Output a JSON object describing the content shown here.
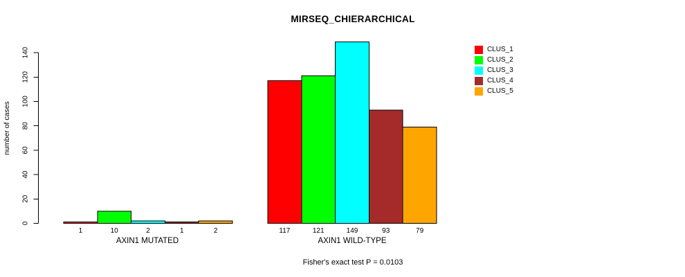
{
  "chart_data": {
    "type": "bar",
    "title": "MIRSEQ_CHIERARCHICAL",
    "ylabel": "number of cases",
    "xlabel": "",
    "ylim": [
      0,
      149
    ],
    "yticks": [
      0,
      20,
      40,
      60,
      80,
      100,
      120,
      140
    ],
    "grid": false,
    "legend_position": "top-right-outside-plot",
    "categories": [
      "AXIN1 MUTATED",
      "AXIN1 WILD-TYPE"
    ],
    "series": [
      {
        "name": "CLUS_1",
        "color": "#FF0000",
        "values": [
          1,
          117
        ]
      },
      {
        "name": "CLUS_2",
        "color": "#00FF00",
        "values": [
          10,
          121
        ]
      },
      {
        "name": "CLUS_3",
        "color": "#00FFFF",
        "values": [
          2,
          149
        ]
      },
      {
        "name": "CLUS_4",
        "color": "#A52A2A",
        "values": [
          1,
          93
        ]
      },
      {
        "name": "CLUS_5",
        "color": "#FFA500",
        "values": [
          2,
          79
        ]
      }
    ],
    "bar_value_labels": true,
    "bar_border_color": "#000000",
    "annotation": "Fisher's exact test P = 0.0103"
  }
}
